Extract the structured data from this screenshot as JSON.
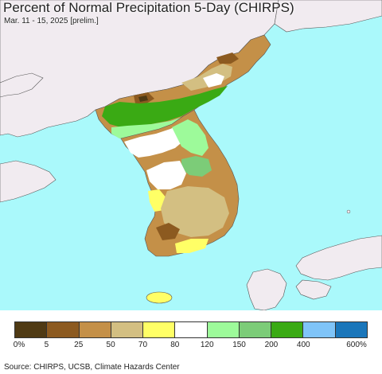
{
  "title": "Percent of Normal Precipitation 5-Day (CHIRPS)",
  "subtitle": "Mar. 11 - 15, 2025 [prelim.]",
  "source": "Source: CHIRPS, UCSB, Climate Hazards Center",
  "colors": {
    "ocean": "#aaf9fb",
    "land_outside": "#f1ebf0",
    "no_data_land": "#ffffff"
  },
  "legend": {
    "colors": [
      "#4f3a14",
      "#8c5a20",
      "#c49048",
      "#d3bf82",
      "#ffff66",
      "#ffffff",
      "#9dfa9a",
      "#7ccc78",
      "#3aaa14",
      "#7fc4f8",
      "#1a76ba"
    ],
    "labels": [
      "0%",
      "5",
      "25",
      "50",
      "70",
      "80",
      "120",
      "150",
      "200",
      "400",
      "600%"
    ]
  }
}
